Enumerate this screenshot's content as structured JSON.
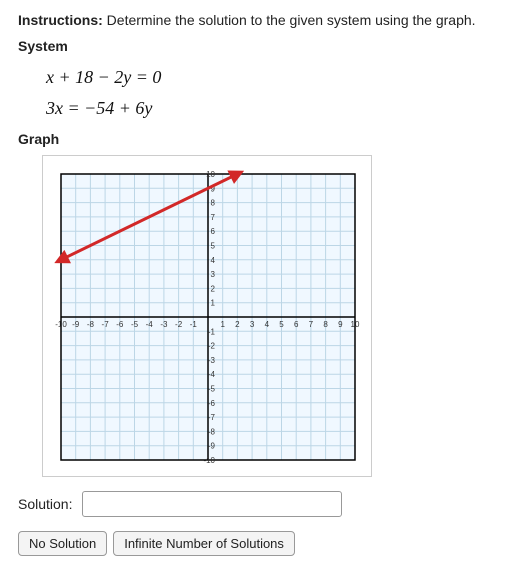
{
  "instructions_label": "Instructions:",
  "instructions_text": "Determine the solution to the given system using the graph.",
  "system_heading": "System",
  "equations": {
    "eq1": "x + 18 − 2y = 0",
    "eq2": "3x = −54 + 6y"
  },
  "graph_heading": "Graph",
  "graph": {
    "type": "line",
    "xlim": [
      -10,
      10
    ],
    "ylim": [
      -10,
      10
    ],
    "tick_step": 1,
    "x_ticks": [
      -10,
      -9,
      -8,
      -7,
      -6,
      -5,
      -4,
      -3,
      -2,
      -1,
      1,
      2,
      3,
      4,
      5,
      6,
      7,
      8,
      9,
      10
    ],
    "y_ticks": [
      -10,
      -9,
      -8,
      -7,
      -6,
      -5,
      -4,
      -3,
      -2,
      -1,
      1,
      2,
      3,
      4,
      5,
      6,
      7,
      8,
      9,
      10
    ],
    "background_color": "#f0f8ff",
    "grid_color": "#bcd6e6",
    "axis_color": "#000000",
    "panel_border_color": "#cccccc",
    "line": {
      "color": "#d22828",
      "width": 3,
      "arrow": true,
      "p1": [
        -10,
        4
      ],
      "p2": [
        2,
        10
      ]
    },
    "tick_label_fontsize": 8,
    "axis_label_fontsize": 8
  },
  "solution": {
    "label": "Solution:",
    "value": "",
    "placeholder": ""
  },
  "buttons": {
    "no_solution": "No Solution",
    "infinite": "Infinite Number of Solutions"
  }
}
